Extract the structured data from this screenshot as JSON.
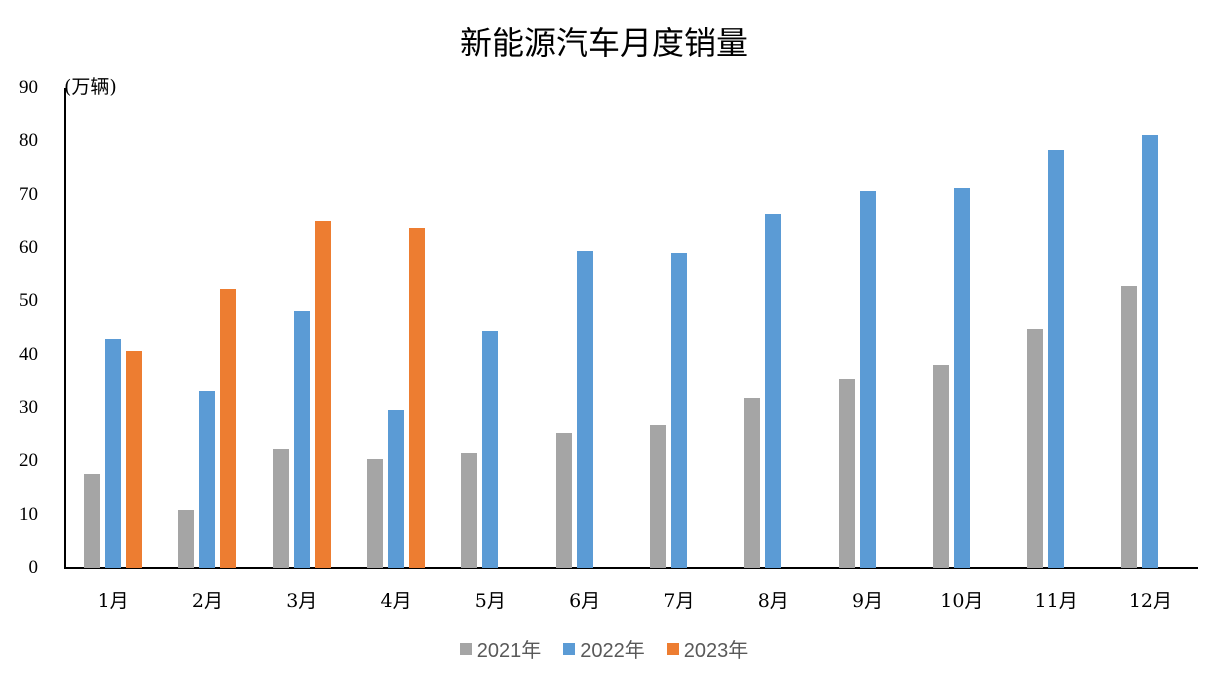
{
  "chart_data": {
    "type": "bar",
    "title": "新能源汽车月度销量",
    "ylabel": "(万辆)",
    "xlabel": "",
    "ylim": [
      0,
      90
    ],
    "yticks": [
      0,
      10,
      20,
      30,
      40,
      50,
      60,
      70,
      80,
      90
    ],
    "grid": false,
    "legend_position": "bottom",
    "categories": [
      "1月",
      "2月",
      "3月",
      "4月",
      "5月",
      "6月",
      "7月",
      "8月",
      "9月",
      "10月",
      "11月",
      "12月"
    ],
    "series": [
      {
        "name": "2021年",
        "color": "#A5A5A5",
        "values": [
          17.6,
          10.9,
          22.3,
          20.4,
          21.6,
          25.4,
          26.8,
          31.9,
          35.5,
          38.1,
          44.8,
          52.9
        ]
      },
      {
        "name": "2022年",
        "color": "#5B9BD5",
        "values": [
          43.0,
          33.2,
          48.2,
          29.6,
          44.5,
          59.5,
          59.1,
          66.4,
          70.7,
          71.3,
          78.4,
          81.2
        ]
      },
      {
        "name": "2023年",
        "color": "#ED7D31",
        "values": [
          40.7,
          52.4,
          65.1,
          63.8,
          null,
          null,
          null,
          null,
          null,
          null,
          null,
          null
        ]
      }
    ]
  }
}
